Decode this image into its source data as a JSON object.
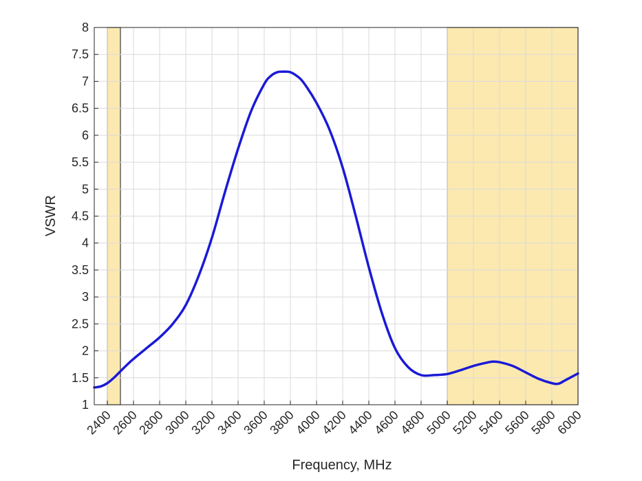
{
  "chart_data": {
    "type": "line",
    "xlabel": "Frequency, MHz",
    "ylabel": "VSWR",
    "xlim": [
      2300,
      6000
    ],
    "ylim": [
      1,
      8
    ],
    "xticks": [
      "2400",
      "2600",
      "2800",
      "3000",
      "3200",
      "3400",
      "3600",
      "3800",
      "4000",
      "4200",
      "4400",
      "4600",
      "4800",
      "5000",
      "5200",
      "5400",
      "5600",
      "5800",
      "6000"
    ],
    "yticks": [
      "1",
      "1.5",
      "2",
      "2.5",
      "3",
      "3.5",
      "4",
      "4.5",
      "5",
      "5.5",
      "6",
      "6.5",
      "7",
      "7.5",
      "8"
    ],
    "grid": true,
    "highlight_bands": [
      {
        "x_start": 2400,
        "x_end": 2500
      },
      {
        "x_start": 5000,
        "x_end": 6000
      }
    ],
    "series": [
      {
        "color": "#1a1ad6",
        "x": [
          2300,
          2350,
          2400,
          2450,
          2500,
          2550,
          2600,
          2700,
          2800,
          2900,
          3000,
          3100,
          3200,
          3300,
          3400,
          3500,
          3600,
          3650,
          3700,
          3750,
          3800,
          3850,
          3900,
          4000,
          4100,
          4200,
          4300,
          4400,
          4500,
          4600,
          4700,
          4800,
          4900,
          5000,
          5100,
          5200,
          5300,
          5350,
          5400,
          5500,
          5600,
          5700,
          5800,
          5850,
          5900,
          6000
        ],
        "y": [
          1.32,
          1.34,
          1.4,
          1.5,
          1.62,
          1.74,
          1.85,
          2.05,
          2.25,
          2.5,
          2.85,
          3.4,
          4.1,
          4.95,
          5.75,
          6.45,
          6.95,
          7.1,
          7.17,
          7.18,
          7.17,
          7.1,
          6.98,
          6.6,
          6.1,
          5.4,
          4.5,
          3.55,
          2.7,
          2.05,
          1.7,
          1.55,
          1.55,
          1.57,
          1.64,
          1.72,
          1.78,
          1.8,
          1.79,
          1.72,
          1.6,
          1.48,
          1.4,
          1.39,
          1.45,
          1.58
        ]
      }
    ]
  }
}
